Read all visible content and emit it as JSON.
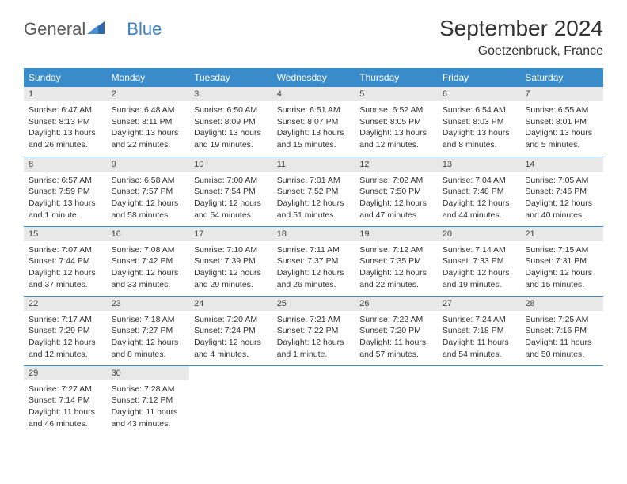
{
  "logo": {
    "part1": "General",
    "part2": "Blue"
  },
  "title": "September 2024",
  "location": "Goetzenbruck, France",
  "colors": {
    "header_bg": "#3a8bc9",
    "header_text": "#ffffff",
    "daynum_bg": "#e8e8e8",
    "border": "#3a8bc9",
    "logo_gray": "#5a5a5a",
    "logo_blue": "#3a7fbf"
  },
  "dayNames": [
    "Sunday",
    "Monday",
    "Tuesday",
    "Wednesday",
    "Thursday",
    "Friday",
    "Saturday"
  ],
  "weeks": [
    [
      {
        "num": "1",
        "sunrise": "6:47 AM",
        "sunset": "8:13 PM",
        "daylight": "13 hours and 26 minutes."
      },
      {
        "num": "2",
        "sunrise": "6:48 AM",
        "sunset": "8:11 PM",
        "daylight": "13 hours and 22 minutes."
      },
      {
        "num": "3",
        "sunrise": "6:50 AM",
        "sunset": "8:09 PM",
        "daylight": "13 hours and 19 minutes."
      },
      {
        "num": "4",
        "sunrise": "6:51 AM",
        "sunset": "8:07 PM",
        "daylight": "13 hours and 15 minutes."
      },
      {
        "num": "5",
        "sunrise": "6:52 AM",
        "sunset": "8:05 PM",
        "daylight": "13 hours and 12 minutes."
      },
      {
        "num": "6",
        "sunrise": "6:54 AM",
        "sunset": "8:03 PM",
        "daylight": "13 hours and 8 minutes."
      },
      {
        "num": "7",
        "sunrise": "6:55 AM",
        "sunset": "8:01 PM",
        "daylight": "13 hours and 5 minutes."
      }
    ],
    [
      {
        "num": "8",
        "sunrise": "6:57 AM",
        "sunset": "7:59 PM",
        "daylight": "13 hours and 1 minute."
      },
      {
        "num": "9",
        "sunrise": "6:58 AM",
        "sunset": "7:57 PM",
        "daylight": "12 hours and 58 minutes."
      },
      {
        "num": "10",
        "sunrise": "7:00 AM",
        "sunset": "7:54 PM",
        "daylight": "12 hours and 54 minutes."
      },
      {
        "num": "11",
        "sunrise": "7:01 AM",
        "sunset": "7:52 PM",
        "daylight": "12 hours and 51 minutes."
      },
      {
        "num": "12",
        "sunrise": "7:02 AM",
        "sunset": "7:50 PM",
        "daylight": "12 hours and 47 minutes."
      },
      {
        "num": "13",
        "sunrise": "7:04 AM",
        "sunset": "7:48 PM",
        "daylight": "12 hours and 44 minutes."
      },
      {
        "num": "14",
        "sunrise": "7:05 AM",
        "sunset": "7:46 PM",
        "daylight": "12 hours and 40 minutes."
      }
    ],
    [
      {
        "num": "15",
        "sunrise": "7:07 AM",
        "sunset": "7:44 PM",
        "daylight": "12 hours and 37 minutes."
      },
      {
        "num": "16",
        "sunrise": "7:08 AM",
        "sunset": "7:42 PM",
        "daylight": "12 hours and 33 minutes."
      },
      {
        "num": "17",
        "sunrise": "7:10 AM",
        "sunset": "7:39 PM",
        "daylight": "12 hours and 29 minutes."
      },
      {
        "num": "18",
        "sunrise": "7:11 AM",
        "sunset": "7:37 PM",
        "daylight": "12 hours and 26 minutes."
      },
      {
        "num": "19",
        "sunrise": "7:12 AM",
        "sunset": "7:35 PM",
        "daylight": "12 hours and 22 minutes."
      },
      {
        "num": "20",
        "sunrise": "7:14 AM",
        "sunset": "7:33 PM",
        "daylight": "12 hours and 19 minutes."
      },
      {
        "num": "21",
        "sunrise": "7:15 AM",
        "sunset": "7:31 PM",
        "daylight": "12 hours and 15 minutes."
      }
    ],
    [
      {
        "num": "22",
        "sunrise": "7:17 AM",
        "sunset": "7:29 PM",
        "daylight": "12 hours and 12 minutes."
      },
      {
        "num": "23",
        "sunrise": "7:18 AM",
        "sunset": "7:27 PM",
        "daylight": "12 hours and 8 minutes."
      },
      {
        "num": "24",
        "sunrise": "7:20 AM",
        "sunset": "7:24 PM",
        "daylight": "12 hours and 4 minutes."
      },
      {
        "num": "25",
        "sunrise": "7:21 AM",
        "sunset": "7:22 PM",
        "daylight": "12 hours and 1 minute."
      },
      {
        "num": "26",
        "sunrise": "7:22 AM",
        "sunset": "7:20 PM",
        "daylight": "11 hours and 57 minutes."
      },
      {
        "num": "27",
        "sunrise": "7:24 AM",
        "sunset": "7:18 PM",
        "daylight": "11 hours and 54 minutes."
      },
      {
        "num": "28",
        "sunrise": "7:25 AM",
        "sunset": "7:16 PM",
        "daylight": "11 hours and 50 minutes."
      }
    ],
    [
      {
        "num": "29",
        "sunrise": "7:27 AM",
        "sunset": "7:14 PM",
        "daylight": "11 hours and 46 minutes."
      },
      {
        "num": "30",
        "sunrise": "7:28 AM",
        "sunset": "7:12 PM",
        "daylight": "11 hours and 43 minutes."
      },
      null,
      null,
      null,
      null,
      null
    ]
  ],
  "labels": {
    "sunrise": "Sunrise:",
    "sunset": "Sunset:",
    "daylight": "Daylight:"
  }
}
